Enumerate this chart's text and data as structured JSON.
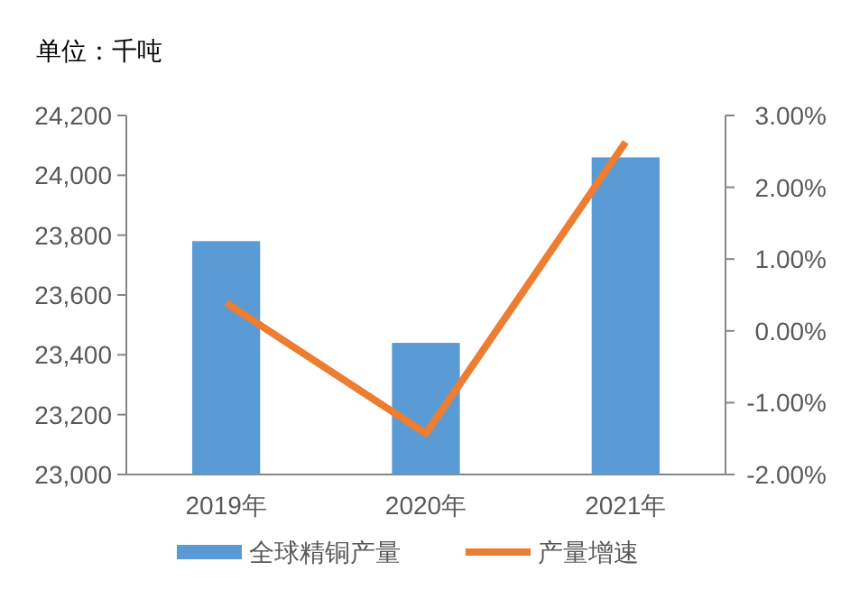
{
  "chart_data": {
    "type": "bar",
    "title": "单位：千吨",
    "categories": [
      "2019年",
      "2020年",
      "2021年"
    ],
    "series": [
      {
        "name": "全球精铜产量",
        "color": "#5b9bd5",
        "values": [
          23780,
          23440,
          24060
        ]
      },
      {
        "name": "产量增速",
        "type": "line",
        "axis": "y2",
        "color": "#ed7d31",
        "values": [
          0.39,
          -1.43,
          2.63
        ]
      }
    ],
    "ylim": [
      23000,
      24200
    ],
    "yticks": [
      {
        "value": 23000,
        "label": "23,000"
      },
      {
        "value": 23200,
        "label": "23,200"
      },
      {
        "value": 23400,
        "label": "23,400"
      },
      {
        "value": 23600,
        "label": "23,600"
      },
      {
        "value": 23800,
        "label": "23,800"
      },
      {
        "value": 24000,
        "label": "24,000"
      },
      {
        "value": 24200,
        "label": "24,200"
      }
    ],
    "y2lim": [
      -2,
      3
    ],
    "y2ticks": [
      {
        "value": -2,
        "label": "-2.00%"
      },
      {
        "value": -1,
        "label": "-1.00%"
      },
      {
        "value": 0,
        "label": "0.00%"
      },
      {
        "value": 1,
        "label": "1.00%"
      },
      {
        "value": 2,
        "label": "2.00%"
      },
      {
        "value": 3,
        "label": "3.00%"
      }
    ],
    "legend": "bottom",
    "grid": false,
    "marker": "none"
  }
}
